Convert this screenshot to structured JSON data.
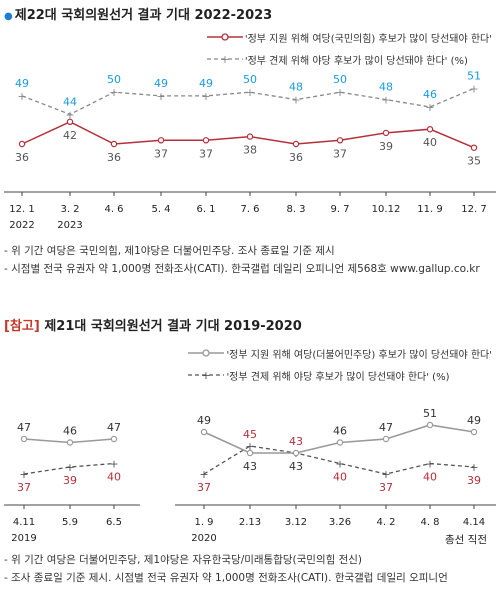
{
  "chart_data": [
    {
      "type": "line",
      "title": "제22대 국회의원선거 결과 기대 2022-2023",
      "legend": {
        "placement": "top-right"
      },
      "x": [
        "12. 1",
        "3. 2",
        "4. 6",
        "5. 4",
        "6. 1",
        "7. 6",
        "8. 3",
        "9. 7",
        "10.12",
        "11. 9",
        "12. 7"
      ],
      "year_labels": [
        {
          "label": "2022",
          "index": 0
        },
        {
          "label": "2023",
          "index": 1
        }
      ],
      "series": [
        {
          "name": "'정부 견제 위해 야당 후보가 많이 당선돼야 한다' (%)",
          "values": [
            49,
            44,
            50,
            49,
            49,
            50,
            48,
            50,
            48,
            46,
            51
          ],
          "color": "#1a9be0",
          "line_color": "#888888",
          "style": "dashed"
        },
        {
          "name": "'정부 지원 위해 여당(국민의힘) 후보가 많이 당선돼야 한다'",
          "values": [
            36,
            42,
            36,
            37,
            37,
            38,
            36,
            37,
            39,
            40,
            35
          ],
          "color": "#555555",
          "line_color": "#b5303a",
          "style": "solid"
        }
      ],
      "notes": [
        "- 위 기간 여당은 국민의힘, 제1야당은 더불어민주당. 조사 종료일 기준 제시",
        "- 시점별 전국 유권자 약 1,000명 전화조사(CATI). 한국갤럽 데일리 오피니언 제568호 www.gallup.co.kr"
      ]
    },
    {
      "type": "line",
      "title_prefix": "[참고]",
      "title": "제21대 국회의원선거 결과 기대 2019-2020",
      "legend": {
        "placement": "top-right"
      },
      "x": [
        "4.11",
        "5.9",
        "6.5",
        "1. 9",
        "2.13",
        "3.12",
        "3.26",
        "4. 2",
        "4. 8",
        "4.14"
      ],
      "segments": [
        [
          0,
          2
        ],
        [
          3,
          9
        ]
      ],
      "year_labels": [
        {
          "label": "2019",
          "index": 0
        },
        {
          "label": "2020",
          "index": 3
        }
      ],
      "extra_label": {
        "label": "총선 직전",
        "index": 9
      },
      "series": [
        {
          "name": "'정부 지원 위해 여당(더불어민주당) 후보가 많이 당선돼야 한다'",
          "values": [
            47,
            46,
            47,
            49,
            43,
            43,
            46,
            47,
            51,
            49
          ],
          "color": "#333333",
          "line_color": "#999999",
          "style": "solid"
        },
        {
          "name": "'정부 견제 위해 야당 후보가 많이 당선돼야 한다' (%)",
          "values": [
            37,
            39,
            40,
            37,
            45,
            43,
            40,
            37,
            40,
            39
          ],
          "color": "#b5303a",
          "line_color": "#555555",
          "style": "dashed"
        }
      ],
      "notes": [
        "- 위 기간 여당은 더불어민주당, 제1야당은 자유한국당/미래통합당(국민의힘 전신)",
        "- 조사 종료일 기준 제시. 시점별 전국 유권자 약 1,000명 전화조사(CATI). 한국갤럽 데일리 오피니언"
      ]
    }
  ]
}
